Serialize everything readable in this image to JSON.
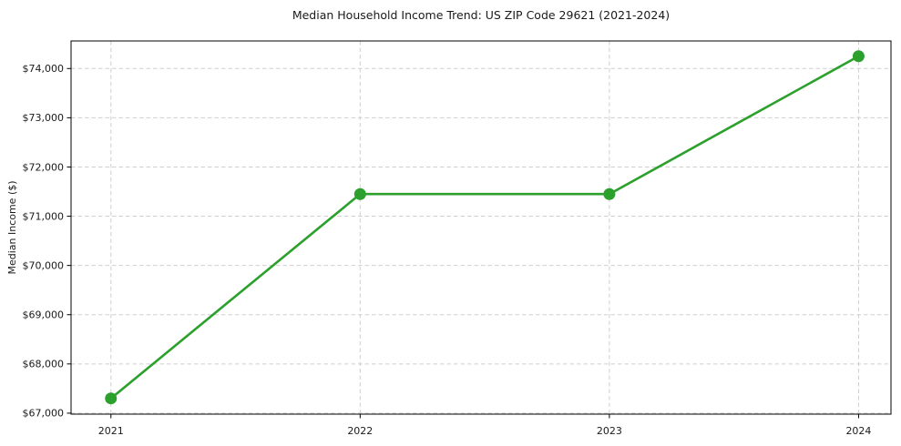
{
  "chart_data": {
    "type": "line",
    "title": "Median Household Income Trend: US ZIP Code 29621 (2021-2024)",
    "xlabel": "",
    "ylabel": "Median Income ($)",
    "x": [
      2021,
      2022,
      2023,
      2024
    ],
    "series": [
      {
        "values": [
          67300,
          71450,
          71450,
          74250
        ]
      }
    ],
    "xtick_values": [
      2021,
      2022,
      2023,
      2024
    ],
    "xtick_labels": [
      "2021",
      "2022",
      "2023",
      "2024"
    ],
    "ytick_values": [
      67000,
      68000,
      69000,
      70000,
      71000,
      72000,
      73000,
      74000
    ],
    "ytick_labels": [
      "$67,000",
      "$68,000",
      "$69,000",
      "$70,000",
      "$71,000",
      "$72,000",
      "$73,000",
      "$74,000"
    ],
    "xlim": [
      2020.84,
      2024.13
    ],
    "ylim": [
      66980,
      74560
    ],
    "grid": true,
    "grid_style": "dashed",
    "legend_position": "none",
    "line_color": "#2ca02c",
    "marker": "circle",
    "background_color": "#ffffff",
    "grid_color": "#cfcfcf",
    "axis_color": "#000000",
    "text_color": "#1a1a1a"
  }
}
